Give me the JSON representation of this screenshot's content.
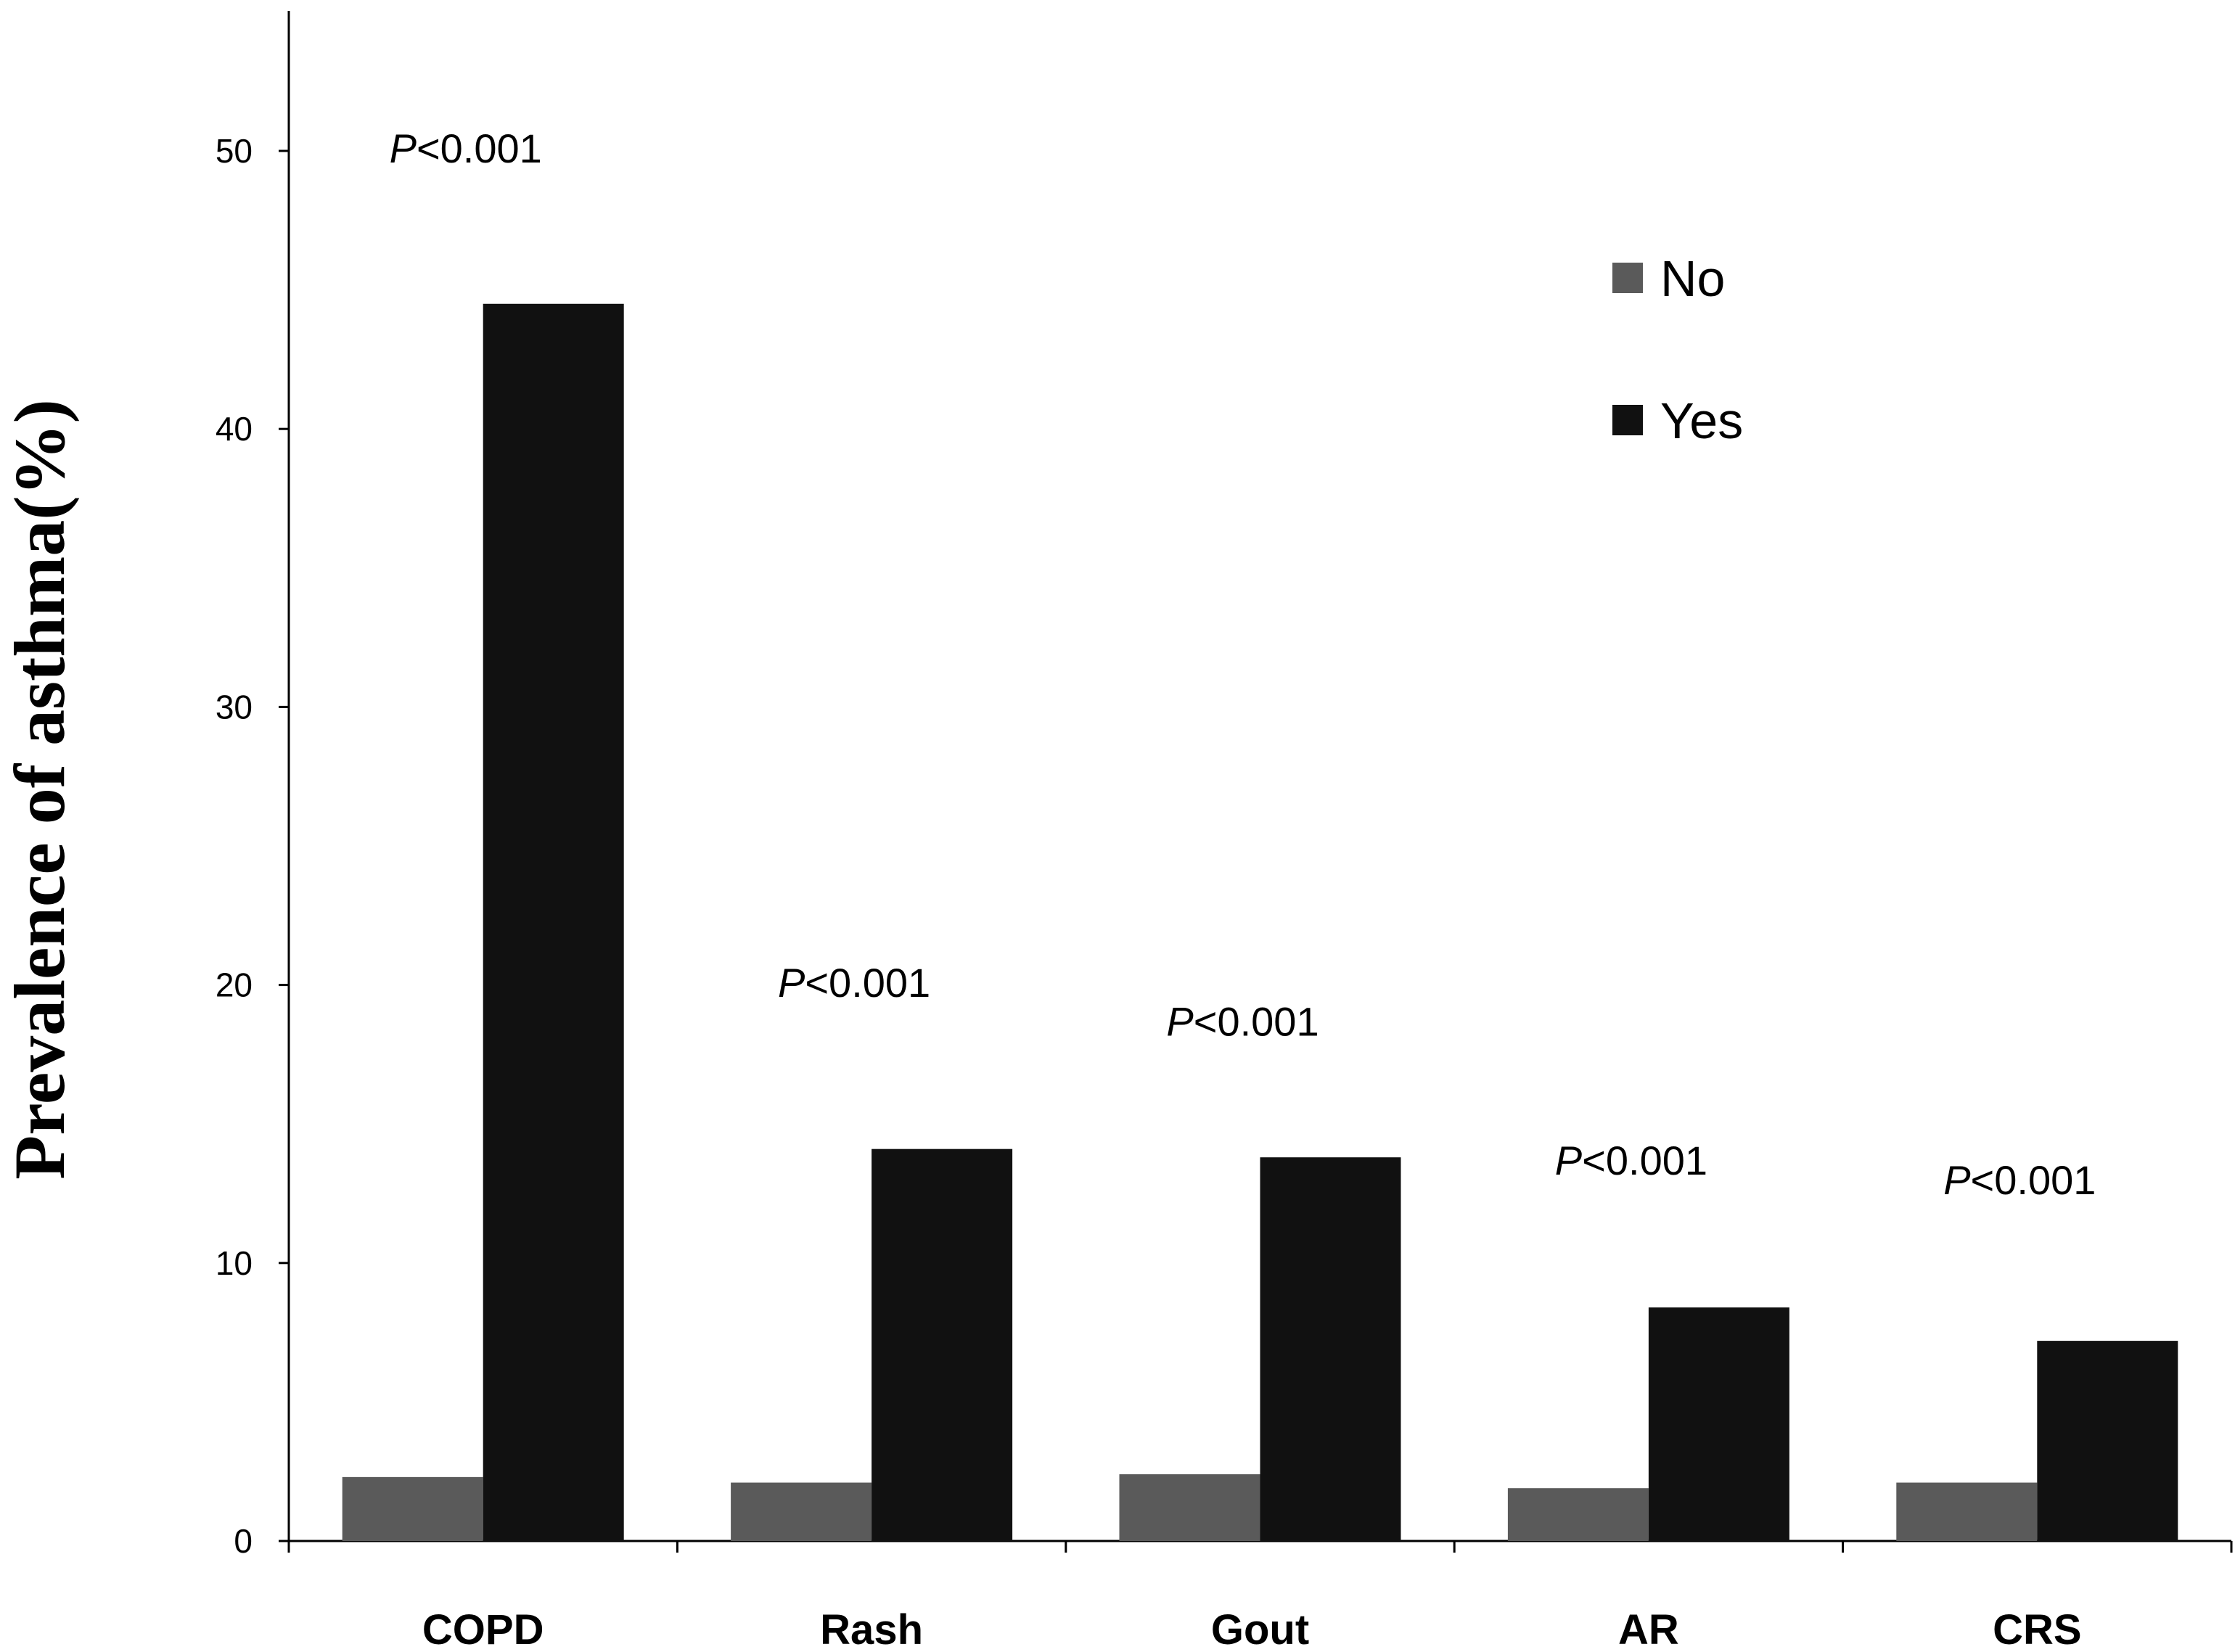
{
  "chart_data": {
    "type": "bar",
    "title": "",
    "xlabel": "",
    "ylabel": "Prevalence of asthma(%)",
    "ylim": [
      0,
      55
    ],
    "yticks": [
      0,
      10,
      20,
      30,
      40,
      50
    ],
    "categories": [
      "COPD",
      "Rash",
      "Gout",
      "AR",
      "CRS"
    ],
    "series": [
      {
        "name": "No",
        "color": "#5a5a5a",
        "values": [
          2.3,
          2.1,
          2.4,
          1.9,
          2.1
        ]
      },
      {
        "name": "Yes",
        "color": "#111111",
        "values": [
          44.5,
          14.1,
          13.8,
          8.4,
          7.2
        ]
      }
    ],
    "annotations": [
      {
        "category": "COPD",
        "prefix": "P",
        "text": "<0.001",
        "y": 50.1
      },
      {
        "category": "Rash",
        "prefix": "P",
        "text": "<0.001",
        "y": 20.1
      },
      {
        "category": "Gout",
        "prefix": "P",
        "text": "<0.001",
        "y": 18.7
      },
      {
        "category": "AR",
        "prefix": "P",
        "text": "<0.001",
        "y": 13.7
      },
      {
        "category": "CRS",
        "prefix": "P",
        "text": "<0.001",
        "y": 13.0
      }
    ],
    "legend_position": "top-right",
    "grid": false
  }
}
